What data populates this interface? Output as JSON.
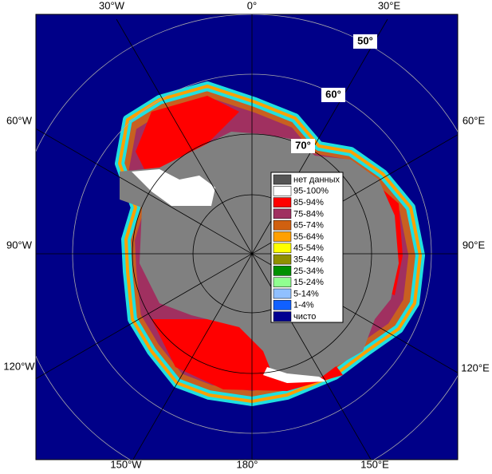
{
  "map": {
    "top_labels": [
      "30°W",
      "0°",
      "30°E"
    ],
    "left_labels": [
      "60°W",
      "90°W",
      "120°W"
    ],
    "right_labels": [
      "60°E",
      "90°E",
      "120°E"
    ],
    "bottom_labels": [
      "150°W",
      "180°",
      "150°E"
    ],
    "latitude_labels": [
      "50°",
      "60°",
      "70°"
    ]
  },
  "legend": {
    "items": [
      {
        "label": "нет данных",
        "color": "#555555"
      },
      {
        "label": "95-100%",
        "color": "#ffffff"
      },
      {
        "label": "85-94%",
        "color": "#ff0000"
      },
      {
        "label": "75-84%",
        "color": "#a03060"
      },
      {
        "label": "65-74%",
        "color": "#d06010"
      },
      {
        "label": "55-64%",
        "color": "#ffa000"
      },
      {
        "label": "45-54%",
        "color": "#ffff00"
      },
      {
        "label": "35-44%",
        "color": "#909000"
      },
      {
        "label": "25-34%",
        "color": "#009000"
      },
      {
        "label": "15-24%",
        "color": "#90ff90"
      },
      {
        "label": "5-14%",
        "color": "#90c0ff"
      },
      {
        "label": "1-4%",
        "color": "#1060ff"
      },
      {
        "label": "чисто",
        "color": "#000090"
      }
    ]
  }
}
